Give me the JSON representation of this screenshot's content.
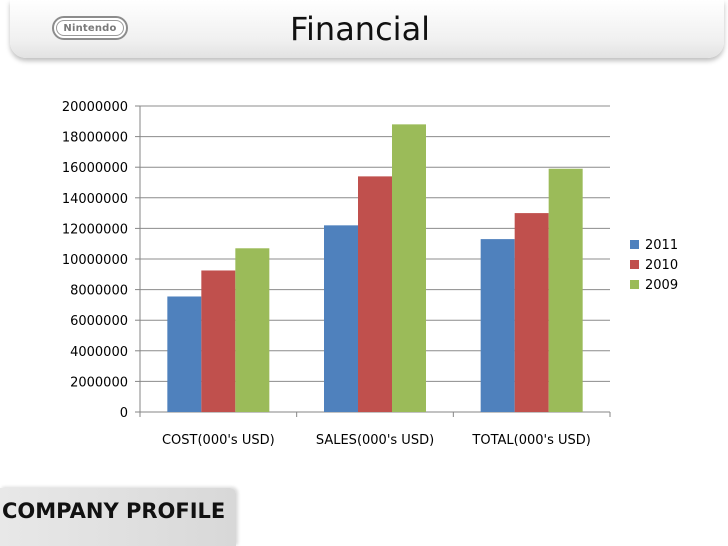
{
  "header": {
    "logo_text": "Nintendo",
    "title": "Financial"
  },
  "footer": {
    "label": "COMPANY PROFILE"
  },
  "colors": {
    "2011": "#4F81BD",
    "2010": "#C0504D",
    "2009": "#9BBB59"
  },
  "chart_data": {
    "type": "bar",
    "title": "",
    "xlabel": "",
    "ylabel": "",
    "categories": [
      "COST(000's USD)",
      "SALES(000's USD)",
      "TOTAL(000's USD)"
    ],
    "series": [
      {
        "name": "2011",
        "values": [
          7550000,
          12200000,
          11300000
        ]
      },
      {
        "name": "2010",
        "values": [
          9250000,
          15400000,
          13000000
        ]
      },
      {
        "name": "2009",
        "values": [
          10700000,
          18800000,
          15900000
        ]
      }
    ],
    "ylim": [
      0,
      20000000
    ],
    "yticks": [
      "0",
      "2000000",
      "4000000",
      "6000000",
      "8000000",
      "10000000",
      "12000000",
      "14000000",
      "16000000",
      "18000000",
      "20000000"
    ],
    "grid": true,
    "legend_position": "right"
  }
}
